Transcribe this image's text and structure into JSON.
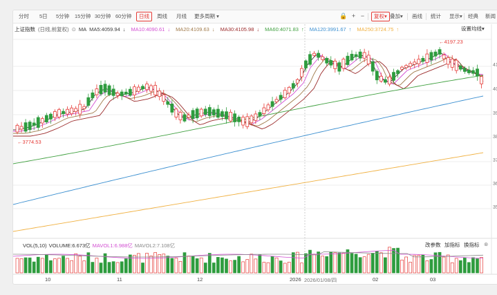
{
  "toolbar": {
    "periods": [
      "分时",
      "5日",
      "5分钟",
      "15分钟",
      "30分钟",
      "60分钟",
      "日线",
      "周线",
      "月线",
      "更多周期"
    ],
    "active_period": "日线",
    "adjust_label": "复权",
    "overlay_label": "叠加",
    "drawline_label": "画线",
    "stats_label": "统计",
    "display_label": "显示",
    "classic_label": "经典",
    "news_label": "新闻"
  },
  "legend": {
    "name": "上证指数",
    "period_info": "(日线,前复权)",
    "ma_label": "MA",
    "ma5": "MA5:4059.94",
    "ma10": "MA10:4090.61",
    "ma20": "MA20:4109.63",
    "ma30": "MA30:4105.98",
    "ma60": "MA60:4071.83",
    "ma120": "MA120:3991.67",
    "ma250": "MA250:3724.75",
    "arrow_down": "↓",
    "arrow_up": "↑",
    "settings_label": "设置均线"
  },
  "annotations": {
    "high": "4197.23",
    "low": "3774.53"
  },
  "y_labels": [
    "41",
    "40",
    "39",
    "38",
    "37",
    "36",
    "35"
  ],
  "volume": {
    "label": "VOL(5,10)",
    "volume": "VOLUME:6.673亿",
    "mavol1": "MAVOL1:6.988亿",
    "mavol2": "MAVOL2:7.108亿",
    "buttons": [
      "改参数",
      "加指标",
      "换指标"
    ]
  },
  "x_labels": [
    "10",
    "11",
    "12",
    "2026",
    "2026/01/08/四",
    "02",
    "03"
  ],
  "colors": {
    "up": "#e53935",
    "down": "#2e9c3e",
    "ma5": "#3b3b3b",
    "ma10": "#d24fd2",
    "ma20": "#a07a4a",
    "ma30": "#9b2a2a",
    "ma60": "#40a040",
    "ma120": "#3b8fd0",
    "ma250": "#f0b040"
  }
}
